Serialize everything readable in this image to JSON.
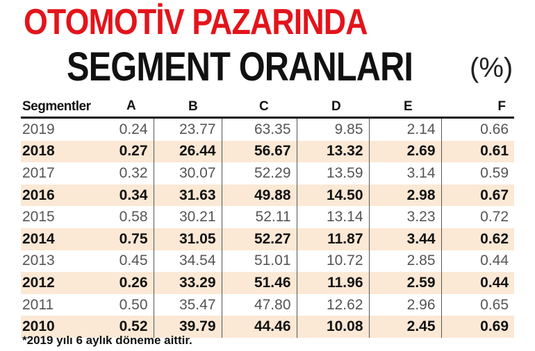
{
  "header": {
    "title_line1": "OTOMOTİV PAZARINDA",
    "title_line2": "SEGMENT ORANLARI",
    "unit": "(%)"
  },
  "chart_data": {
    "type": "table",
    "title": "OTOMOTİV PAZARINDA SEGMENT ORANLARI",
    "unit": "(%)",
    "columns": [
      "Segmentler",
      "A",
      "B",
      "C",
      "D",
      "E",
      "F"
    ],
    "rows": [
      {
        "year": "2019",
        "A": "0.24",
        "B": "23.77",
        "C": "63.35",
        "D": "9.85",
        "E": "2.14",
        "F": "0.66",
        "style": "light"
      },
      {
        "year": "2018",
        "A": "0.27",
        "B": "26.44",
        "C": "56.67",
        "D": "13.32",
        "E": "2.69",
        "F": "0.61",
        "style": "bold"
      },
      {
        "year": "2017",
        "A": "0.32",
        "B": "30.07",
        "C": "52.29",
        "D": "13.59",
        "E": "3.14",
        "F": "0.59",
        "style": "light"
      },
      {
        "year": "2016",
        "A": "0.34",
        "B": "31.63",
        "C": "49.88",
        "D": "14.50",
        "E": "2.98",
        "F": "0.67",
        "style": "bold"
      },
      {
        "year": "2015",
        "A": "0.58",
        "B": "30.21",
        "C": "52.11",
        "D": "13.14",
        "E": "3.23",
        "F": "0.72",
        "style": "light"
      },
      {
        "year": "2014",
        "A": "0.75",
        "B": "31.05",
        "C": "52.27",
        "D": "11.87",
        "E": "3.44",
        "F": "0.62",
        "style": "bold"
      },
      {
        "year": "2013",
        "A": "0.45",
        "B": "34.54",
        "C": "51.01",
        "D": "10.72",
        "E": "2.85",
        "F": "0.44",
        "style": "light"
      },
      {
        "year": "2012",
        "A": "0.26",
        "B": "33.29",
        "C": "51.46",
        "D": "11.96",
        "E": "2.59",
        "F": "0.44",
        "style": "bold"
      },
      {
        "year": "2011",
        "A": "0.50",
        "B": "35.47",
        "C": "47.80",
        "D": "12.62",
        "E": "2.96",
        "F": "0.65",
        "style": "light"
      },
      {
        "year": "2010",
        "A": "0.52",
        "B": "39.79",
        "C": "44.46",
        "D": "10.08",
        "E": "2.45",
        "F": "0.69",
        "style": "bold"
      }
    ],
    "note": "*2019 yılı 6 aylık döneme aittir."
  },
  "colors": {
    "title_red": "#e3141b",
    "title_dark": "#111111",
    "bold_row_bg": "#fbe8d5",
    "light_row_text": "#555555"
  }
}
